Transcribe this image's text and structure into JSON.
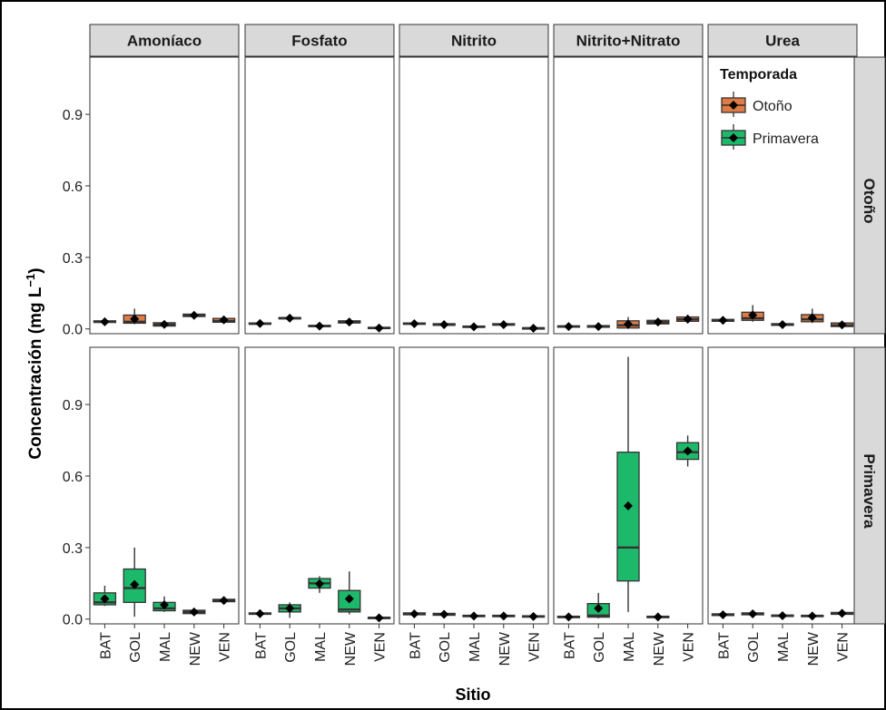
{
  "chart_data": {
    "type": "boxplot",
    "xlabel": "Sitio",
    "ylabel": "Concentración (mg L",
    "ylabel_sup": "−1",
    "ylabel_close": ")",
    "ylim": [
      -0.02,
      1.14
    ],
    "yticks": [
      "0.0",
      "0.3",
      "0.6",
      "0.9"
    ],
    "ytick_values": [
      0,
      0.3,
      0.6,
      0.9
    ],
    "x_categories": [
      "BAT",
      "GOL",
      "MAL",
      "NEW",
      "VEN"
    ],
    "column_facets": [
      "Amoníaco",
      "Fosfato",
      "Nitrito",
      "Nitrito+Nitrato",
      "Urea"
    ],
    "row_facets": [
      "Otoño",
      "Primavera"
    ],
    "legend": {
      "title": "Temporada",
      "position": "top-right (inside Urea panel)",
      "items": [
        {
          "label": "Otoño",
          "color": "#E07B45"
        },
        {
          "label": "Primavera",
          "color": "#1DB96A"
        }
      ]
    },
    "colors": {
      "Otoño": "#E07B45",
      "Primavera": "#1DB96A"
    },
    "data": {
      "Otoño": {
        "Amoníaco": [
          {
            "min": 0.025,
            "q1": 0.027,
            "median": 0.03,
            "q3": 0.034,
            "max": 0.037,
            "mean": 0.03
          },
          {
            "min": 0.02,
            "q1": 0.024,
            "median": 0.03,
            "q3": 0.058,
            "max": 0.085,
            "mean": 0.042
          },
          {
            "min": 0.008,
            "q1": 0.012,
            "median": 0.018,
            "q3": 0.026,
            "max": 0.028,
            "mean": 0.019
          },
          {
            "min": 0.05,
            "q1": 0.052,
            "median": 0.057,
            "q3": 0.062,
            "max": 0.065,
            "mean": 0.057
          },
          {
            "min": 0.025,
            "q1": 0.028,
            "median": 0.033,
            "q3": 0.044,
            "max": 0.05,
            "mean": 0.038
          }
        ],
        "Fosfato": [
          {
            "min": 0.018,
            "q1": 0.02,
            "median": 0.022,
            "q3": 0.025,
            "max": 0.028,
            "mean": 0.023
          },
          {
            "min": 0.04,
            "q1": 0.042,
            "median": 0.045,
            "q3": 0.048,
            "max": 0.05,
            "mean": 0.045
          },
          {
            "min": 0.008,
            "q1": 0.01,
            "median": 0.012,
            "q3": 0.015,
            "max": 0.018,
            "mean": 0.012
          },
          {
            "min": 0.022,
            "q1": 0.025,
            "median": 0.028,
            "q3": 0.034,
            "max": 0.038,
            "mean": 0.029
          },
          {
            "min": 0.0,
            "q1": 0.002,
            "median": 0.004,
            "q3": 0.007,
            "max": 0.01,
            "mean": 0.004
          }
        ],
        "Nitrito": [
          {
            "min": 0.018,
            "q1": 0.02,
            "median": 0.022,
            "q3": 0.025,
            "max": 0.028,
            "mean": 0.022
          },
          {
            "min": 0.012,
            "q1": 0.015,
            "median": 0.018,
            "q3": 0.022,
            "max": 0.025,
            "mean": 0.018
          },
          {
            "min": 0.005,
            "q1": 0.007,
            "median": 0.009,
            "q3": 0.012,
            "max": 0.014,
            "mean": 0.009
          },
          {
            "min": 0.013,
            "q1": 0.016,
            "median": 0.018,
            "q3": 0.022,
            "max": 0.025,
            "mean": 0.018
          },
          {
            "min": 0.0,
            "q1": 0.001,
            "median": 0.003,
            "q3": 0.005,
            "max": 0.007,
            "mean": 0.003
          }
        ],
        "Nitrito+Nitrato": [
          {
            "min": 0.005,
            "q1": 0.008,
            "median": 0.01,
            "q3": 0.013,
            "max": 0.016,
            "mean": 0.01
          },
          {
            "min": 0.004,
            "q1": 0.007,
            "median": 0.01,
            "q3": 0.014,
            "max": 0.018,
            "mean": 0.01
          },
          {
            "min": 0.0,
            "q1": 0.004,
            "median": 0.015,
            "q3": 0.034,
            "max": 0.05,
            "mean": 0.02
          },
          {
            "min": 0.015,
            "q1": 0.021,
            "median": 0.028,
            "q3": 0.036,
            "max": 0.045,
            "mean": 0.029
          },
          {
            "min": 0.025,
            "q1": 0.032,
            "median": 0.04,
            "q3": 0.05,
            "max": 0.06,
            "mean": 0.041
          }
        ],
        "Urea": [
          {
            "min": 0.03,
            "q1": 0.032,
            "median": 0.035,
            "q3": 0.04,
            "max": 0.044,
            "mean": 0.036
          },
          {
            "min": 0.03,
            "q1": 0.036,
            "median": 0.045,
            "q3": 0.07,
            "max": 0.1,
            "mean": 0.058
          },
          {
            "min": 0.012,
            "q1": 0.015,
            "median": 0.018,
            "q3": 0.022,
            "max": 0.025,
            "mean": 0.018
          },
          {
            "min": 0.025,
            "q1": 0.03,
            "median": 0.04,
            "q3": 0.06,
            "max": 0.085,
            "mean": 0.047
          },
          {
            "min": 0.005,
            "q1": 0.01,
            "median": 0.015,
            "q3": 0.025,
            "max": 0.03,
            "mean": 0.017
          }
        ]
      },
      "Primavera": {
        "Amoníaco": [
          {
            "min": 0.055,
            "q1": 0.06,
            "median": 0.07,
            "q3": 0.11,
            "max": 0.14,
            "mean": 0.085
          },
          {
            "min": 0.01,
            "q1": 0.07,
            "median": 0.13,
            "q3": 0.21,
            "max": 0.3,
            "mean": 0.145
          },
          {
            "min": 0.03,
            "q1": 0.035,
            "median": 0.045,
            "q3": 0.07,
            "max": 0.095,
            "mean": 0.06
          },
          {
            "min": 0.018,
            "q1": 0.023,
            "median": 0.03,
            "q3": 0.037,
            "max": 0.042,
            "mean": 0.03
          },
          {
            "min": 0.07,
            "q1": 0.073,
            "median": 0.078,
            "q3": 0.083,
            "max": 0.088,
            "mean": 0.078
          }
        ],
        "Fosfato": [
          {
            "min": 0.018,
            "q1": 0.02,
            "median": 0.023,
            "q3": 0.026,
            "max": 0.03,
            "mean": 0.023
          },
          {
            "min": 0.005,
            "q1": 0.03,
            "median": 0.045,
            "q3": 0.06,
            "max": 0.07,
            "mean": 0.045
          },
          {
            "min": 0.11,
            "q1": 0.13,
            "median": 0.15,
            "q3": 0.17,
            "max": 0.18,
            "mean": 0.148
          },
          {
            "min": 0.02,
            "q1": 0.03,
            "median": 0.04,
            "q3": 0.12,
            "max": 0.2,
            "mean": 0.085
          },
          {
            "min": 0.0,
            "q1": 0.002,
            "median": 0.005,
            "q3": 0.008,
            "max": 0.012,
            "mean": 0.005
          }
        ],
        "Nitrito": [
          {
            "min": 0.015,
            "q1": 0.018,
            "median": 0.022,
            "q3": 0.026,
            "max": 0.03,
            "mean": 0.022
          },
          {
            "min": 0.012,
            "q1": 0.016,
            "median": 0.02,
            "q3": 0.024,
            "max": 0.028,
            "mean": 0.02
          },
          {
            "min": 0.007,
            "q1": 0.01,
            "median": 0.013,
            "q3": 0.016,
            "max": 0.02,
            "mean": 0.013
          },
          {
            "min": 0.007,
            "q1": 0.01,
            "median": 0.013,
            "q3": 0.016,
            "max": 0.02,
            "mean": 0.013
          },
          {
            "min": 0.005,
            "q1": 0.008,
            "median": 0.011,
            "q3": 0.014,
            "max": 0.017,
            "mean": 0.011
          }
        ],
        "Nitrito+Nitrato": [
          {
            "min": 0.004,
            "q1": 0.006,
            "median": 0.009,
            "q3": 0.012,
            "max": 0.015,
            "mean": 0.009
          },
          {
            "min": 0.003,
            "q1": 0.008,
            "median": 0.015,
            "q3": 0.065,
            "max": 0.11,
            "mean": 0.045
          },
          {
            "min": 0.03,
            "q1": 0.16,
            "median": 0.3,
            "q3": 0.7,
            "max": 1.1,
            "mean": 0.475
          },
          {
            "min": 0.004,
            "q1": 0.006,
            "median": 0.009,
            "q3": 0.012,
            "max": 0.015,
            "mean": 0.009
          },
          {
            "min": 0.64,
            "q1": 0.67,
            "median": 0.7,
            "q3": 0.74,
            "max": 0.77,
            "mean": 0.705
          }
        ],
        "Urea": [
          {
            "min": 0.012,
            "q1": 0.015,
            "median": 0.018,
            "q3": 0.022,
            "max": 0.026,
            "mean": 0.018
          },
          {
            "min": 0.015,
            "q1": 0.018,
            "median": 0.022,
            "q3": 0.026,
            "max": 0.03,
            "mean": 0.022
          },
          {
            "min": 0.008,
            "q1": 0.011,
            "median": 0.014,
            "q3": 0.017,
            "max": 0.02,
            "mean": 0.014
          },
          {
            "min": 0.007,
            "q1": 0.01,
            "median": 0.013,
            "q3": 0.016,
            "max": 0.019,
            "mean": 0.013
          },
          {
            "min": 0.017,
            "q1": 0.02,
            "median": 0.024,
            "q3": 0.028,
            "max": 0.032,
            "mean": 0.024
          }
        ]
      }
    }
  }
}
